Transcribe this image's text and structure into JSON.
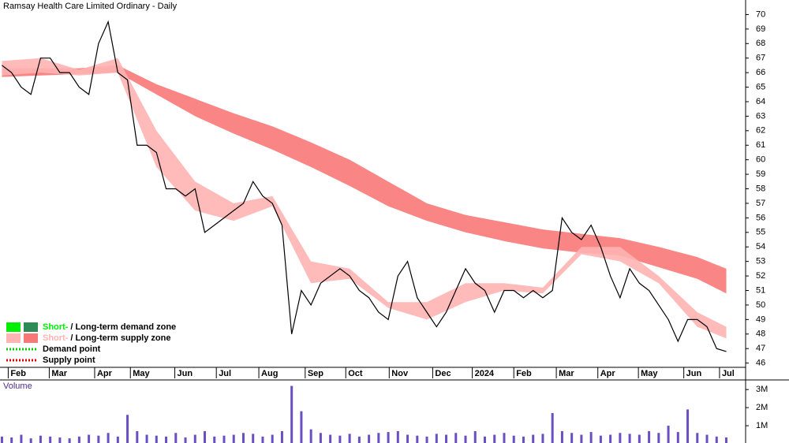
{
  "chart_data": {
    "type": "line",
    "title": "Ramsay Health Care Limited Ordinary - Daily",
    "color": "#000000",
    "xlim": [
      -0.2,
      77
    ],
    "xticks": [
      {
        "value": 0.65,
        "label": "Feb"
      },
      {
        "value": 4.9,
        "label": "Mar"
      },
      {
        "value": 9.6,
        "label": "Apr"
      },
      {
        "value": 13.3,
        "label": "May"
      },
      {
        "value": 17.9,
        "label": "Jun"
      },
      {
        "value": 22.2,
        "label": "Jul"
      },
      {
        "value": 26.6,
        "label": "Aug"
      },
      {
        "value": 31.4,
        "label": "Sep"
      },
      {
        "value": 35.6,
        "label": "Oct"
      },
      {
        "value": 40.1,
        "label": "Nov"
      },
      {
        "value": 44.6,
        "label": "Dec"
      },
      {
        "value": 48.7,
        "label": "2024"
      },
      {
        "value": 53,
        "label": "Feb"
      },
      {
        "value": 57.4,
        "label": "Mar"
      },
      {
        "value": 61.7,
        "label": "Apr"
      },
      {
        "value": 65.9,
        "label": "May"
      },
      {
        "value": 70.6,
        "label": "Jun"
      },
      {
        "value": 74.3,
        "label": "Jul"
      }
    ],
    "ylim": [
      45.6,
      71
    ],
    "yticks": [
      46,
      47,
      48,
      49,
      50,
      51,
      52,
      53,
      54,
      55,
      56,
      57,
      58,
      59,
      60,
      61,
      62,
      63,
      64,
      65,
      66,
      67,
      68,
      69,
      70
    ],
    "x": [
      0,
      1,
      2,
      3,
      4,
      5,
      6,
      7,
      8,
      9,
      10,
      11,
      12,
      13,
      14,
      15,
      16,
      17,
      18,
      19,
      20,
      21,
      22,
      23,
      24,
      25,
      26,
      27,
      28,
      29,
      30,
      31,
      32,
      33,
      34,
      35,
      36,
      37,
      38,
      39,
      40,
      41,
      42,
      43,
      44,
      45,
      46,
      47,
      48,
      49,
      50,
      51,
      52,
      53,
      54,
      55,
      56,
      57,
      58,
      59,
      60,
      61,
      62,
      63,
      64,
      65,
      66,
      67,
      68,
      69,
      70,
      71,
      72,
      73,
      74,
      75
    ],
    "values": [
      66.5,
      66,
      65,
      64.5,
      67,
      67,
      66,
      66,
      65,
      64.5,
      68,
      69.5,
      66,
      65.5,
      61,
      61,
      60.5,
      58,
      58,
      57.5,
      58,
      55,
      55.5,
      56,
      56.5,
      57,
      58.5,
      57.5,
      57,
      55.5,
      48,
      51,
      50,
      51.5,
      52,
      52.5,
      52,
      51,
      50.5,
      49.5,
      49,
      52,
      53,
      50.5,
      49.5,
      48.5,
      49.5,
      51,
      52.5,
      51.5,
      51,
      49.5,
      51,
      51,
      50.5,
      51,
      50.5,
      51,
      56,
      55,
      54.5,
      55.5,
      54,
      52,
      50.5,
      52.5,
      51.5,
      51,
      50,
      49,
      47.5,
      49,
      49,
      48.5,
      47,
      46.8
    ],
    "zone_x": [
      0,
      4,
      8,
      12,
      16,
      20,
      24,
      28,
      32,
      36,
      40,
      44,
      48,
      52,
      56,
      60,
      64,
      68,
      72,
      75
    ],
    "zones": [
      {
        "color": "#f87878",
        "upper": [
          66.3,
          66.3,
          66.3,
          66.5,
          65.2,
          64.2,
          63.2,
          62.3,
          61.2,
          60,
          58.5,
          57,
          56.2,
          55.7,
          55.2,
          54.9,
          54.6,
          54,
          53.3,
          52.5
        ],
        "lower": [
          65.7,
          65.8,
          65.9,
          66,
          64.5,
          63,
          61.8,
          60.7,
          59.5,
          58.2,
          56.8,
          55.8,
          55,
          54.4,
          53.9,
          53.6,
          53.4,
          52.6,
          51.8,
          50.8
        ]
      },
      {
        "color": "#ffb3b3",
        "upper": [
          66.8,
          67,
          66.2,
          67,
          62,
          58.5,
          57,
          57.5,
          53,
          52.5,
          50.2,
          50.2,
          51.5,
          51.5,
          51.2,
          54,
          54,
          52,
          49.5,
          48.5
        ],
        "lower": [
          65.8,
          66,
          65.8,
          66,
          59.5,
          56.5,
          55.8,
          56.8,
          51.5,
          51.8,
          49.8,
          49,
          50.2,
          51,
          50.8,
          53.5,
          53,
          51.5,
          48.5,
          47.7
        ]
      }
    ],
    "legend": [
      {
        "parts": [
          "Short-",
          "/",
          "Long-term demand zone"
        ],
        "colors": [
          "#00ee00",
          "#2e8b57"
        ]
      },
      {
        "parts": [
          "Short-",
          "/",
          "Long-term supply zone"
        ],
        "colors": [
          "#ffb3b3",
          "#f87878"
        ]
      },
      {
        "parts": [
          "Demand point"
        ],
        "colors": [
          "#00cc00"
        ]
      },
      {
        "parts": [
          "Supply point"
        ],
        "colors": [
          "#dd0000"
        ]
      }
    ],
    "volume": {
      "label": "Volume",
      "color": "#6a4fc2",
      "ylim": [
        0,
        3400000
      ],
      "yticks": [
        {
          "value": 1000000,
          "label": "1M"
        },
        {
          "value": 2000000,
          "label": "2M"
        },
        {
          "value": 3000000,
          "label": "3M"
        }
      ],
      "values": [
        400000,
        350000,
        500000,
        300000,
        450000,
        400000,
        350000,
        300000,
        400000,
        500000,
        450000,
        600000,
        400000,
        1600000,
        700000,
        500000,
        450000,
        400000,
        600000,
        350000,
        500000,
        700000,
        400000,
        450000,
        500000,
        600000,
        550000,
        400000,
        500000,
        700000,
        3200000,
        1800000,
        800000,
        600000,
        500000,
        450000,
        550000,
        400000,
        500000,
        600000,
        650000,
        700000,
        500000,
        450000,
        400000,
        550000,
        500000,
        600000,
        450000,
        700000,
        400000,
        500000,
        600000,
        450000,
        400000,
        500000,
        550000,
        1700000,
        700000,
        600000,
        500000,
        650000,
        450000,
        500000,
        600000,
        550000,
        500000,
        700000,
        600000,
        1000000,
        650000,
        1900000,
        600000,
        500000,
        400000,
        350000
      ]
    }
  }
}
